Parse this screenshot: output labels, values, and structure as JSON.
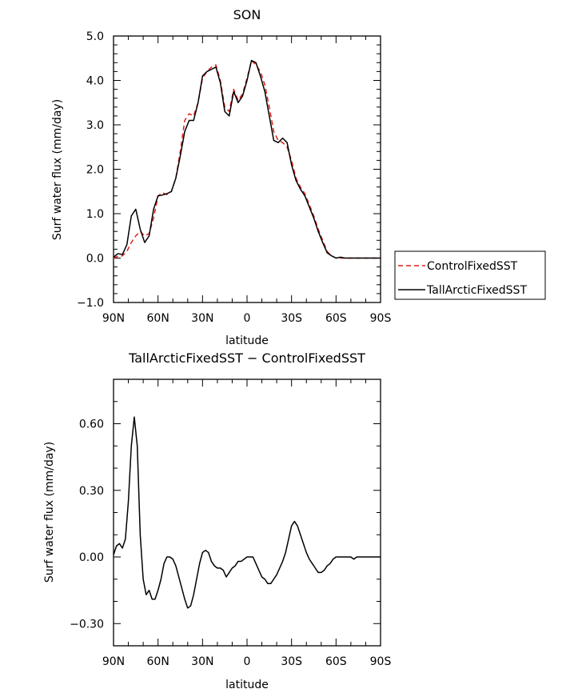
{
  "chart_data": [
    {
      "type": "line",
      "title": "SON",
      "xlabel": "latitude",
      "ylabel": "Surf water flux (mm/day)",
      "xlim": [
        90,
        -90
      ],
      "ylim": [
        -1.0,
        5.0
      ],
      "x_ticks": [
        {
          "value": 90,
          "label": "90N"
        },
        {
          "value": 60,
          "label": "60N"
        },
        {
          "value": 30,
          "label": "30N"
        },
        {
          "value": 0,
          "label": "0"
        },
        {
          "value": -30,
          "label": "30S"
        },
        {
          "value": -60,
          "label": "60S"
        },
        {
          "value": -90,
          "label": "90S"
        }
      ],
      "y_ticks": [
        {
          "value": 5.0,
          "label": "5.0"
        },
        {
          "value": 4.0,
          "label": "4.0"
        },
        {
          "value": 3.0,
          "label": "3.0"
        },
        {
          "value": 2.0,
          "label": "2.0"
        },
        {
          "value": 1.0,
          "label": "1.0"
        },
        {
          "value": 0.0,
          "label": "0.0"
        },
        {
          "value": -1.0,
          "label": "−1.0"
        }
      ],
      "legend_position": "right-outside",
      "series": [
        {
          "name": "ControlFixedSST",
          "color": "#e0201b",
          "dash": "dashed",
          "x": [
            90,
            87,
            84,
            81,
            78,
            75,
            72,
            69,
            66,
            63,
            60,
            57,
            54,
            51,
            48,
            45,
            42,
            39,
            36,
            33,
            30,
            27,
            24,
            21,
            18,
            15,
            12,
            9,
            6,
            3,
            0,
            -3,
            -6,
            -9,
            -12,
            -15,
            -18,
            -21,
            -24,
            -27,
            -30,
            -33,
            -36,
            -39,
            -42,
            -45,
            -48,
            -51,
            -54,
            -57,
            -60,
            -63,
            -66,
            -69,
            -72,
            -75,
            -78,
            -81,
            -84,
            -87,
            -90
          ],
          "y": [
            0.0,
            0.04,
            0.05,
            0.15,
            0.35,
            0.5,
            0.6,
            0.5,
            0.55,
            0.9,
            1.4,
            1.47,
            1.43,
            1.5,
            1.8,
            2.4,
            3.1,
            3.25,
            3.2,
            3.5,
            4.05,
            4.2,
            4.3,
            4.35,
            4.0,
            3.4,
            3.3,
            3.8,
            3.55,
            3.7,
            4.05,
            4.45,
            4.35,
            4.2,
            3.9,
            3.4,
            2.85,
            2.65,
            2.6,
            2.5,
            2.2,
            1.8,
            1.6,
            1.45,
            1.2,
            0.95,
            0.65,
            0.4,
            0.15,
            0.05,
            0.0,
            0.0,
            0.0,
            0.0,
            0.0,
            0.0,
            0.0,
            0.0,
            0.0,
            0.0,
            0.0
          ]
        },
        {
          "name": "TallArcticFixedSST",
          "color": "#000000",
          "dash": "solid",
          "x": [
            90,
            87,
            84,
            81,
            78,
            75,
            72,
            69,
            66,
            63,
            60,
            57,
            54,
            51,
            48,
            45,
            42,
            39,
            36,
            33,
            30,
            27,
            24,
            21,
            18,
            15,
            12,
            9,
            6,
            3,
            0,
            -3,
            -6,
            -9,
            -12,
            -15,
            -18,
            -21,
            -24,
            -27,
            -30,
            -33,
            -36,
            -39,
            -42,
            -45,
            -48,
            -51,
            -54,
            -57,
            -60,
            -63,
            -66,
            -69,
            -72,
            -75,
            -78,
            -81,
            -84,
            -87,
            -90
          ],
          "y": [
            0.02,
            0.1,
            0.08,
            0.3,
            0.95,
            1.1,
            0.65,
            0.35,
            0.5,
            1.1,
            1.4,
            1.42,
            1.45,
            1.5,
            1.8,
            2.3,
            2.85,
            3.1,
            3.1,
            3.5,
            4.1,
            4.2,
            4.25,
            4.3,
            3.95,
            3.3,
            3.2,
            3.75,
            3.5,
            3.65,
            4.0,
            4.45,
            4.4,
            4.1,
            3.75,
            3.2,
            2.65,
            2.6,
            2.7,
            2.6,
            2.1,
            1.75,
            1.55,
            1.4,
            1.15,
            0.9,
            0.6,
            0.35,
            0.12,
            0.05,
            0.0,
            0.02,
            0.0,
            0.0,
            0.0,
            0.0,
            0.0,
            0.0,
            0.0,
            0.0,
            0.0
          ]
        }
      ]
    },
    {
      "type": "line",
      "title": "TallArcticFixedSST − ControlFixedSST",
      "xlabel": "latitude",
      "ylabel": "Surf water flux (mm/day)",
      "xlim": [
        90,
        -90
      ],
      "ylim": [
        -0.4,
        0.8
      ],
      "x_ticks": [
        {
          "value": 90,
          "label": "90N"
        },
        {
          "value": 60,
          "label": "60N"
        },
        {
          "value": 30,
          "label": "30N"
        },
        {
          "value": 0,
          "label": "0"
        },
        {
          "value": -30,
          "label": "30S"
        },
        {
          "value": -60,
          "label": "60S"
        },
        {
          "value": -90,
          "label": "90S"
        }
      ],
      "y_ticks": [
        {
          "value": 0.6,
          "label": "0.60"
        },
        {
          "value": 0.3,
          "label": "0.30"
        },
        {
          "value": 0.0,
          "label": "0.00"
        },
        {
          "value": -0.3,
          "label": "−0.30"
        }
      ],
      "series": [
        {
          "color": "#000000",
          "dash": "solid",
          "x": [
            90,
            88,
            86,
            84,
            82,
            80,
            78,
            76,
            74,
            72,
            70,
            68,
            66,
            64,
            62,
            60,
            58,
            56,
            54,
            52,
            50,
            48,
            46,
            44,
            42,
            40,
            38,
            36,
            34,
            32,
            30,
            28,
            26,
            24,
            22,
            20,
            18,
            16,
            14,
            12,
            10,
            8,
            6,
            4,
            2,
            0,
            -2,
            -4,
            -6,
            -8,
            -10,
            -12,
            -14,
            -16,
            -18,
            -20,
            -22,
            -24,
            -26,
            -28,
            -30,
            -32,
            -34,
            -36,
            -38,
            -40,
            -42,
            -44,
            -46,
            -48,
            -50,
            -52,
            -54,
            -56,
            -58,
            -60,
            -62,
            -64,
            -66,
            -68,
            -70,
            -72,
            -74,
            -76,
            -78,
            -80,
            -82,
            -84,
            -86,
            -88,
            -90
          ],
          "y": [
            0.01,
            0.05,
            0.06,
            0.04,
            0.08,
            0.25,
            0.5,
            0.63,
            0.5,
            0.1,
            -0.1,
            -0.17,
            -0.15,
            -0.19,
            -0.19,
            -0.15,
            -0.1,
            -0.03,
            0.0,
            0.0,
            -0.01,
            -0.04,
            -0.09,
            -0.14,
            -0.19,
            -0.23,
            -0.22,
            -0.17,
            -0.1,
            -0.03,
            0.02,
            0.03,
            0.02,
            -0.02,
            -0.04,
            -0.05,
            -0.05,
            -0.06,
            -0.09,
            -0.07,
            -0.05,
            -0.04,
            -0.02,
            -0.02,
            -0.01,
            0.0,
            0.0,
            0.0,
            -0.03,
            -0.06,
            -0.09,
            -0.1,
            -0.12,
            -0.12,
            -0.1,
            -0.08,
            -0.05,
            -0.02,
            0.02,
            0.08,
            0.14,
            0.16,
            0.14,
            0.1,
            0.06,
            0.02,
            -0.01,
            -0.03,
            -0.05,
            -0.07,
            -0.07,
            -0.06,
            -0.04,
            -0.03,
            -0.01,
            0.0,
            0.0,
            0.0,
            0.0,
            0.0,
            0.0,
            -0.01,
            0.0,
            0.0,
            0.0,
            0.0,
            0.0,
            0.0,
            0.0,
            0.0,
            0.0
          ]
        }
      ]
    }
  ]
}
